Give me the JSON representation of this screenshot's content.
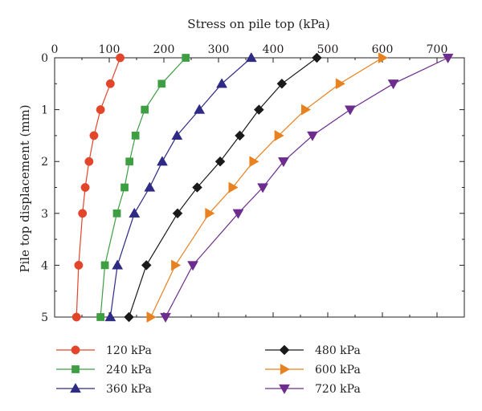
{
  "chart_data": {
    "type": "line",
    "title": "",
    "xlabel": "Stress on pile top (kPa)",
    "ylabel": "Pile top displacement (mm)",
    "xlim": [
      0,
      750
    ],
    "ylim": [
      0,
      5
    ],
    "x_ticks": [
      0,
      100,
      200,
      300,
      400,
      500,
      600,
      700
    ],
    "y_ticks": [
      0,
      1,
      2,
      3,
      4,
      5
    ],
    "x_axis_position": "top",
    "y_axis_inverted": true,
    "grid": false,
    "legend_position": "bottom",
    "series": [
      {
        "name": "120 kPa",
        "color": "#e2452a",
        "marker": "circle",
        "x": [
          120,
          102,
          84,
          72,
          63,
          56,
          51,
          44,
          40
        ],
        "y": [
          0,
          0.5,
          1.0,
          1.5,
          2.0,
          2.5,
          3.0,
          4.0,
          5.0
        ]
      },
      {
        "name": "240 kPa",
        "color": "#3d9e42",
        "marker": "square",
        "x": [
          240,
          196,
          165,
          148,
          137,
          128,
          114,
          92,
          84
        ],
        "y": [
          0,
          0.5,
          1.0,
          1.5,
          2.0,
          2.5,
          3.0,
          4.0,
          5.0
        ]
      },
      {
        "name": "360 kPa",
        "color": "#2e2a85",
        "marker": "triangle-up",
        "x": [
          360,
          306,
          265,
          224,
          197,
          174,
          146,
          115,
          102
        ],
        "y": [
          0,
          0.5,
          1.0,
          1.5,
          2.0,
          2.5,
          3.0,
          4.0,
          5.0
        ]
      },
      {
        "name": "480 kPa",
        "color": "#1a1a1a",
        "marker": "diamond",
        "x": [
          480,
          416,
          374,
          339,
          303,
          261,
          225,
          168,
          136
        ],
        "y": [
          0,
          0.5,
          1.0,
          1.5,
          2.0,
          2.5,
          3.0,
          4.0,
          5.0
        ]
      },
      {
        "name": "600 kPa",
        "color": "#e8811f",
        "marker": "triangle-right",
        "x": [
          600,
          522,
          459,
          410,
          364,
          326,
          283,
          221,
          176
        ],
        "y": [
          0,
          0.5,
          1.0,
          1.5,
          2.0,
          2.5,
          3.0,
          4.0,
          5.0
        ]
      },
      {
        "name": "720 kPa",
        "color": "#6d2c8e",
        "marker": "triangle-down",
        "x": [
          720,
          620,
          541,
          472,
          419,
          381,
          336,
          253,
          203
        ],
        "y": [
          0,
          0.5,
          1.0,
          1.5,
          2.0,
          2.5,
          3.0,
          4.0,
          5.0
        ]
      }
    ]
  }
}
